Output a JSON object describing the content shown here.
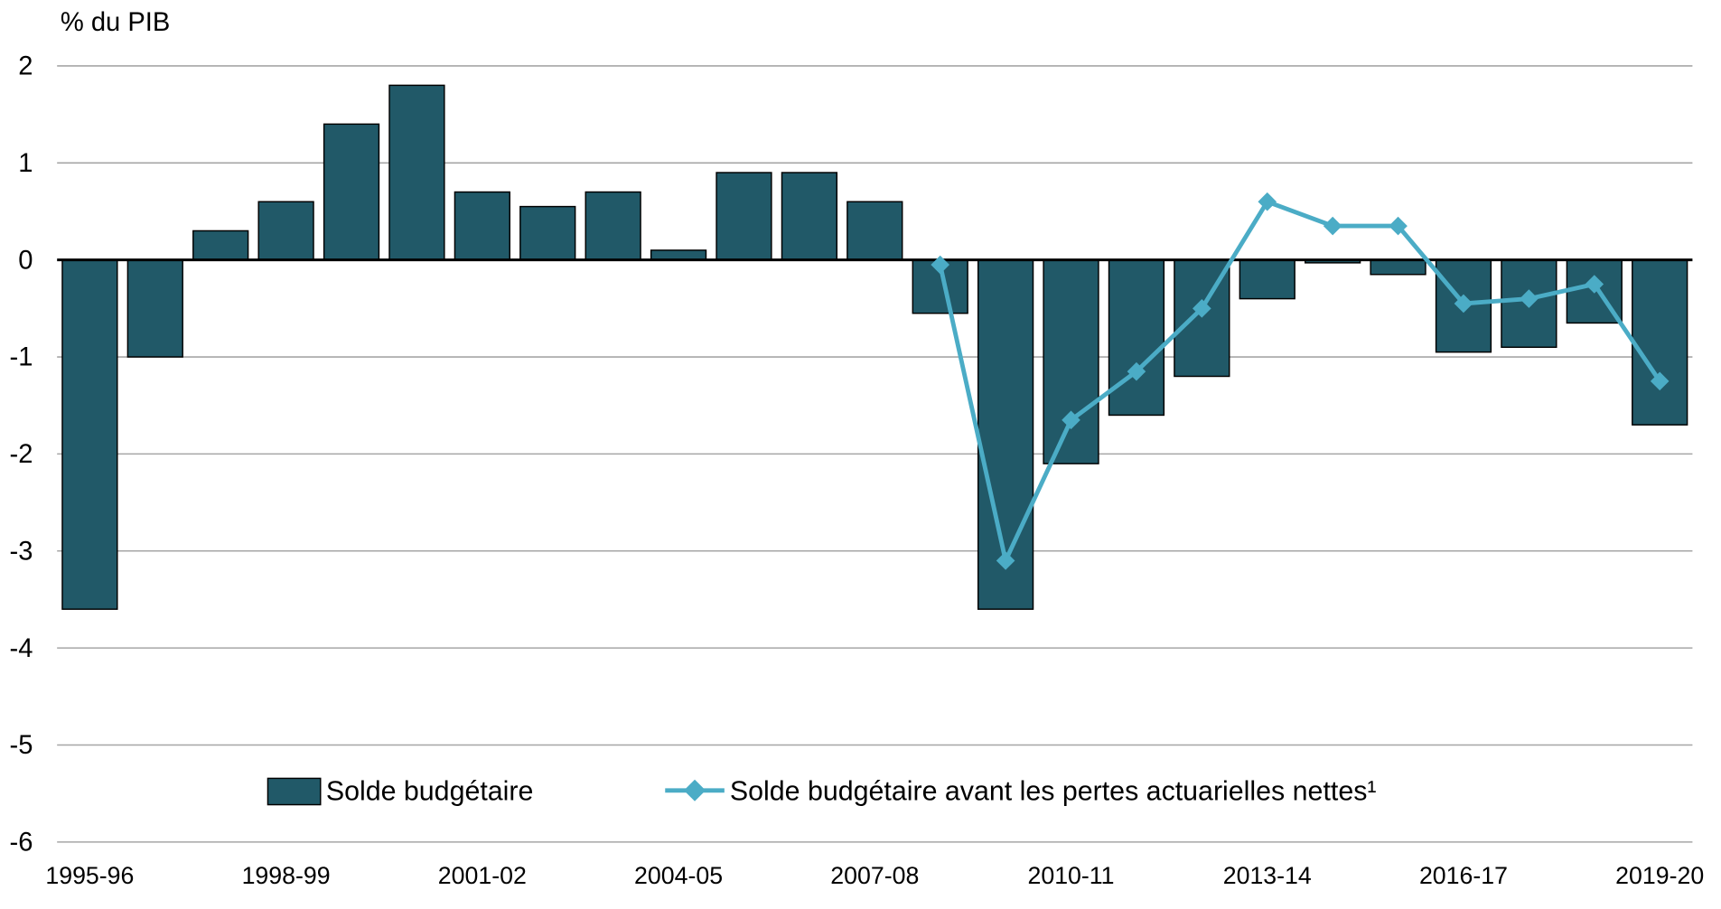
{
  "chart_data": {
    "type": "bar",
    "ylabel": "% du PIB",
    "ylim": [
      -6,
      2
    ],
    "yticks": [
      2,
      1,
      0,
      -1,
      -2,
      -3,
      -4,
      -5,
      -6
    ],
    "grid": true,
    "legend_placement": "bottom-center",
    "categories": [
      "1995-96",
      "1996-97",
      "1997-98",
      "1998-99",
      "1999-00",
      "2000-01",
      "2001-02",
      "2002-03",
      "2003-04",
      "2004-05",
      "2005-06",
      "2006-07",
      "2007-08",
      "2008-09",
      "2009-10",
      "2010-11",
      "2011-12",
      "2012-13",
      "2013-14",
      "2014-15",
      "2015-16",
      "2016-17",
      "2017-18",
      "2018-19",
      "2019-20"
    ],
    "xtick_labels": [
      "1995-96",
      "1998-99",
      "2001-02",
      "2004-05",
      "2007-08",
      "2010-11",
      "2013-14",
      "2016-17",
      "2019-20"
    ],
    "series": [
      {
        "name": "Solde budgétaire",
        "kind": "bar",
        "color": "#215968",
        "values": [
          -3.6,
          -1.0,
          0.3,
          0.6,
          1.4,
          1.8,
          0.7,
          0.55,
          0.7,
          0.1,
          0.9,
          0.9,
          0.6,
          -0.55,
          -3.6,
          -2.1,
          -1.6,
          -1.2,
          -0.4,
          -0.03,
          -0.15,
          -0.95,
          -0.9,
          -0.65,
          -1.7
        ]
      },
      {
        "name": "Solde budgétaire avant les pertes actuarielles nettes¹",
        "kind": "line",
        "color": "#4BACC6",
        "values": [
          null,
          null,
          null,
          null,
          null,
          null,
          null,
          null,
          null,
          null,
          null,
          null,
          null,
          -0.05,
          -3.1,
          -1.65,
          -1.15,
          -0.5,
          0.6,
          0.35,
          0.35,
          -0.45,
          -0.4,
          -0.25,
          -1.25
        ]
      }
    ]
  }
}
